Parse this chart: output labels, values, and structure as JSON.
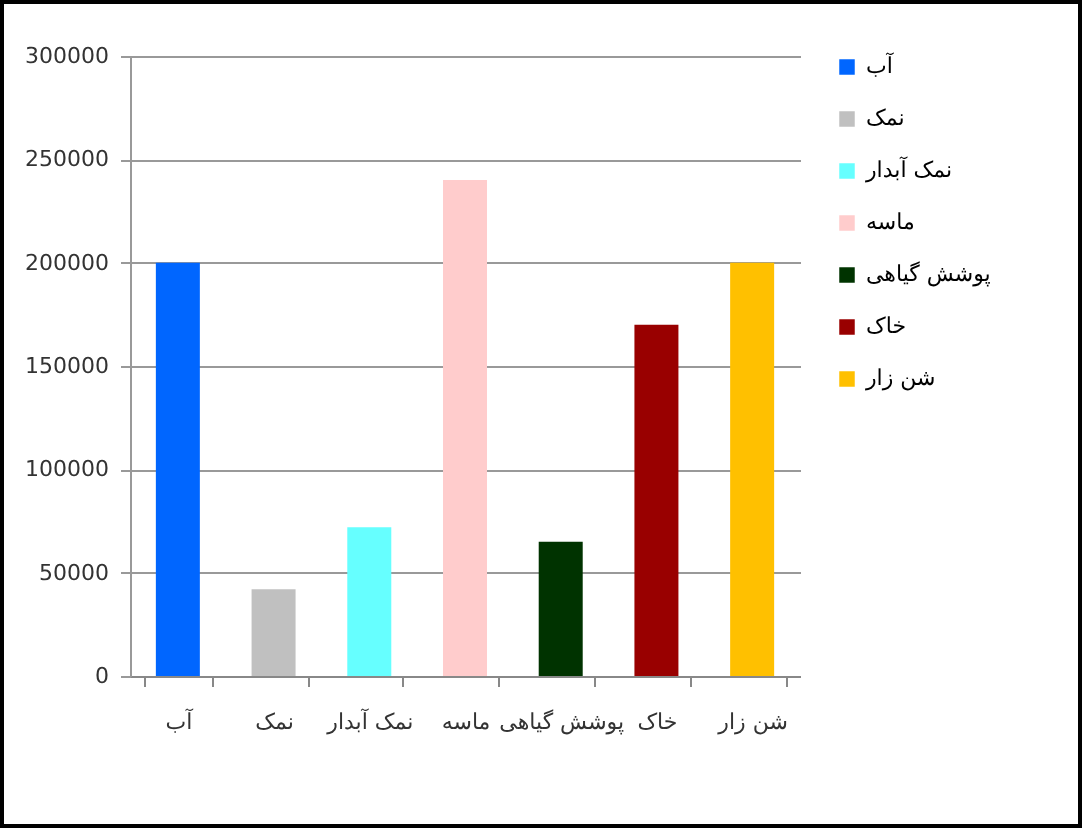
{
  "chart_data": {
    "type": "bar",
    "stacked": true,
    "categories": [
      "آب",
      "نمک",
      "نمک آبدار",
      "ماسه",
      "پوشش گیاهی",
      "خاک",
      "شن زار"
    ],
    "series": [
      {
        "name": "آب",
        "color": "#0066ff",
        "values": [
          200000,
          null,
          null,
          null,
          null,
          null,
          null
        ]
      },
      {
        "name": "نمک",
        "color": "#c0c0c0",
        "values": [
          null,
          42000,
          null,
          null,
          null,
          null,
          null
        ]
      },
      {
        "name": "نمک آبدار",
        "color": "#66ffff",
        "values": [
          null,
          null,
          72000,
          null,
          null,
          null,
          null
        ]
      },
      {
        "name": "ماسه",
        "color": "#ffcccc",
        "values": [
          null,
          null,
          null,
          240000,
          null,
          null,
          null
        ]
      },
      {
        "name": "پوشش گیاهی",
        "color": "#003300",
        "values": [
          null,
          null,
          null,
          null,
          65000,
          null,
          null
        ]
      },
      {
        "name": "خاک",
        "color": "#990000",
        "values": [
          null,
          null,
          null,
          null,
          null,
          170000,
          null
        ]
      },
      {
        "name": "شن زار",
        "color": "#ffc000",
        "values": [
          null,
          null,
          null,
          null,
          null,
          null,
          200000
        ]
      }
    ],
    "ylim": [
      0,
      300000
    ],
    "yticks": [
      0,
      50000,
      100000,
      150000,
      200000,
      250000,
      300000
    ],
    "grid": "y",
    "legend": "right"
  }
}
